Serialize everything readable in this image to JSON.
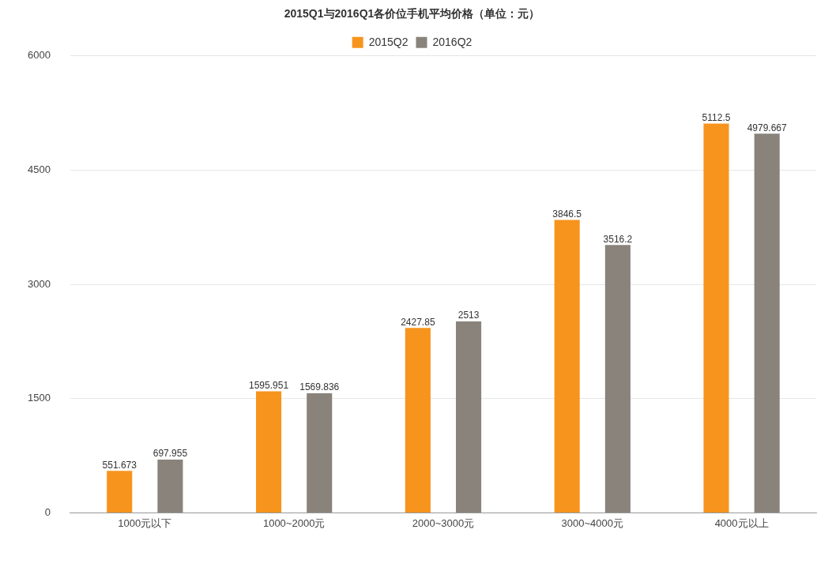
{
  "chart_data": {
    "type": "bar",
    "title": "2015Q1与2016Q1各价位手机平均价格（单位：元）",
    "categories": [
      "1000元以下",
      "1000~2000元",
      "2000~3000元",
      "3000~4000元",
      "4000元以上"
    ],
    "series": [
      {
        "name": "2015Q2",
        "color": "#f7941d",
        "values": [
          551.673,
          1595.951,
          2427.85,
          3846.5,
          5112.5
        ]
      },
      {
        "name": "2016Q2",
        "color": "#8a837c",
        "values": [
          697.955,
          1569.836,
          2513,
          3516.2,
          4979.667
        ]
      }
    ],
    "ylim": [
      0,
      6000
    ],
    "yticks": [
      0,
      1500,
      3000,
      4500,
      6000
    ],
    "grid": "y",
    "legend": "top",
    "data_labels": true
  }
}
